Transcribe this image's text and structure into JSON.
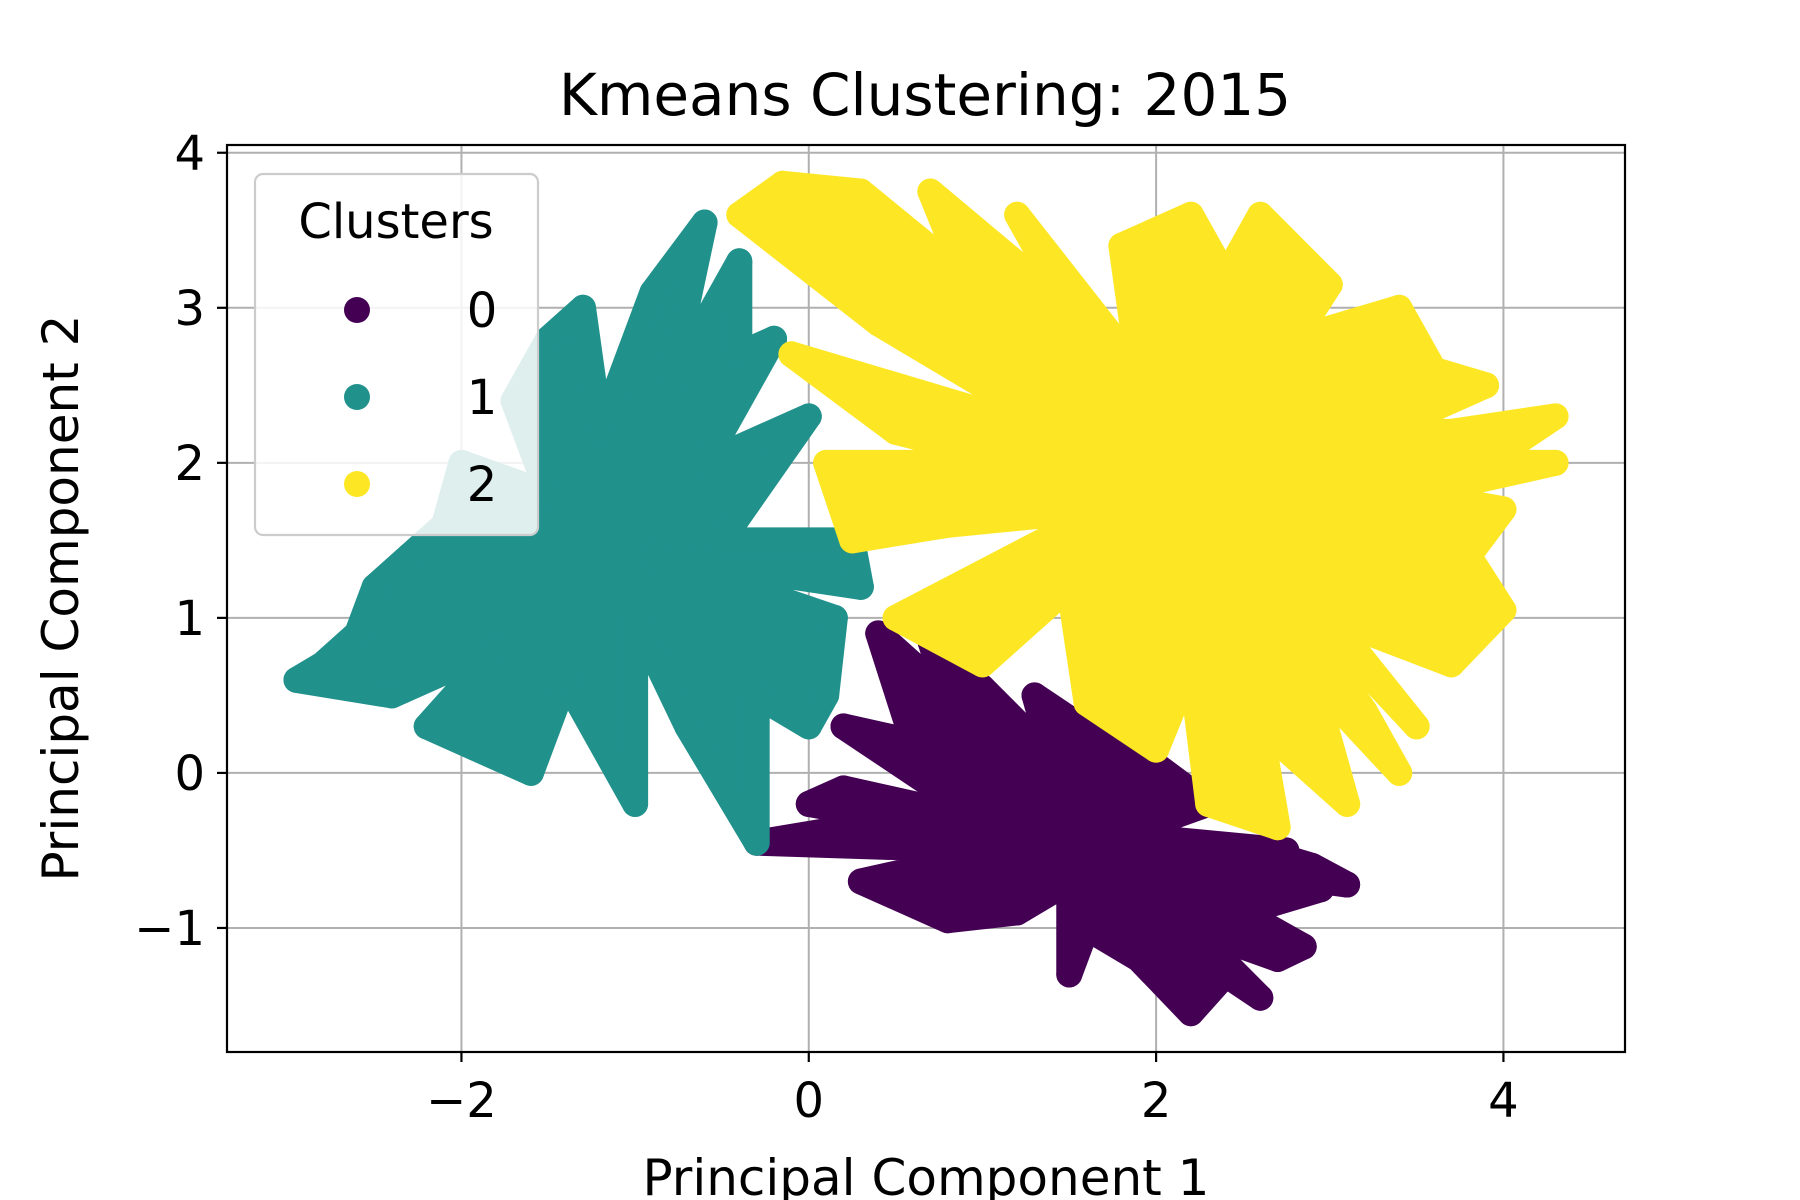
{
  "chart_data": {
    "type": "scatter",
    "title": "Kmeans Clustering: 2015",
    "xlabel": "Principal Component 1",
    "ylabel": "Principal Component 2",
    "xlim": [
      -3.35,
      4.7
    ],
    "ylim": [
      -1.8,
      4.05
    ],
    "x_ticks": [
      -2,
      0,
      2,
      4
    ],
    "y_ticks": [
      -1,
      0,
      1,
      2,
      3,
      4
    ],
    "x_tick_labels": [
      "−2",
      "0",
      "2",
      "4"
    ],
    "y_tick_labels": [
      "−1",
      "0",
      "1",
      "2",
      "3",
      "4"
    ],
    "grid": true,
    "legend": {
      "title": "Clusters",
      "placement": "upper-left"
    },
    "series": [
      {
        "name": "0",
        "color": "#440154",
        "points": [
          [
            -0.3,
            -0.45
          ],
          [
            0.0,
            -0.2
          ],
          [
            0.2,
            0.3
          ],
          [
            0.4,
            0.9
          ],
          [
            0.7,
            0.85
          ],
          [
            1.0,
            0.55
          ],
          [
            1.3,
            0.5
          ],
          [
            1.7,
            0.2
          ],
          [
            2.0,
            0.05
          ],
          [
            2.3,
            -0.2
          ],
          [
            2.6,
            -0.5
          ],
          [
            2.9,
            -0.6
          ],
          [
            3.1,
            -0.72
          ],
          [
            2.85,
            -1.12
          ],
          [
            2.6,
            -1.45
          ],
          [
            2.2,
            -1.55
          ],
          [
            1.5,
            -1.3
          ],
          [
            0.8,
            -0.95
          ],
          [
            0.3,
            -0.7
          ],
          [
            1.0,
            -0.3
          ],
          [
            1.5,
            -0.7
          ],
          [
            2.2,
            -1.0
          ],
          [
            0.6,
            0.2
          ],
          [
            1.4,
            0.1
          ],
          [
            2.5,
            -0.9
          ],
          [
            1.8,
            -0.4
          ],
          [
            0.5,
            -0.3
          ],
          [
            1.2,
            -0.9
          ],
          [
            2.7,
            -1.2
          ],
          [
            2.95,
            -0.75
          ],
          [
            2.3,
            -0.6
          ],
          [
            1.9,
            -1.2
          ],
          [
            0.8,
            0.5
          ],
          [
            1.1,
            -0.5
          ],
          [
            2.75,
            -0.5
          ],
          [
            2.4,
            -1.3
          ],
          [
            0.2,
            -0.1
          ],
          [
            1.6,
            -1.0
          ]
        ]
      },
      {
        "name": "1",
        "color": "#21918c",
        "points": [
          [
            -2.95,
            0.6
          ],
          [
            -2.8,
            0.7
          ],
          [
            -2.3,
            1.4
          ],
          [
            -2.5,
            1.2
          ],
          [
            -2.0,
            2.0
          ],
          [
            -1.5,
            2.8
          ],
          [
            -1.3,
            3.0
          ],
          [
            -0.9,
            3.1
          ],
          [
            -0.6,
            3.55
          ],
          [
            -0.4,
            3.3
          ],
          [
            -0.2,
            2.8
          ],
          [
            0.0,
            2.3
          ],
          [
            0.25,
            1.5
          ],
          [
            0.3,
            1.2
          ],
          [
            0.1,
            0.5
          ],
          [
            0.0,
            0.3
          ],
          [
            -0.3,
            -0.45
          ],
          [
            -1.0,
            -0.2
          ],
          [
            -1.6,
            0.0
          ],
          [
            -2.2,
            0.3
          ],
          [
            -1.0,
            1.0
          ],
          [
            -0.5,
            1.5
          ],
          [
            -1.5,
            1.8
          ],
          [
            -0.8,
            2.5
          ],
          [
            -0.3,
            0.5
          ],
          [
            -1.8,
            0.8
          ],
          [
            -1.2,
            2.2
          ],
          [
            -0.6,
            2.0
          ],
          [
            -2.6,
            0.9
          ],
          [
            -1.4,
            0.6
          ],
          [
            -0.4,
            2.7
          ],
          [
            -2.1,
            1.6
          ],
          [
            -0.7,
            0.3
          ],
          [
            -1.7,
            2.4
          ],
          [
            0.15,
            1.0
          ],
          [
            -0.9,
            1.4
          ],
          [
            -2.4,
            0.5
          ]
        ]
      },
      {
        "name": "2",
        "color": "#fde725",
        "points": [
          [
            -0.4,
            3.6
          ],
          [
            -0.15,
            3.8
          ],
          [
            0.3,
            3.75
          ],
          [
            0.7,
            3.75
          ],
          [
            1.2,
            3.6
          ],
          [
            1.8,
            3.4
          ],
          [
            2.2,
            3.6
          ],
          [
            2.6,
            3.6
          ],
          [
            3.0,
            3.15
          ],
          [
            3.4,
            3.0
          ],
          [
            3.6,
            2.6
          ],
          [
            3.9,
            2.5
          ],
          [
            4.3,
            2.3
          ],
          [
            4.3,
            2.0
          ],
          [
            4.0,
            1.7
          ],
          [
            3.8,
            1.4
          ],
          [
            4.0,
            1.05
          ],
          [
            3.7,
            0.7
          ],
          [
            3.5,
            0.3
          ],
          [
            3.4,
            0.0
          ],
          [
            3.1,
            -0.2
          ],
          [
            2.7,
            -0.35
          ],
          [
            2.3,
            -0.2
          ],
          [
            2.0,
            0.15
          ],
          [
            1.6,
            0.45
          ],
          [
            1.0,
            0.7
          ],
          [
            0.5,
            1.0
          ],
          [
            0.25,
            1.5
          ],
          [
            0.1,
            2.0
          ],
          [
            -0.1,
            2.7
          ],
          [
            0.5,
            2.2
          ],
          [
            1.0,
            2.5
          ],
          [
            1.5,
            3.0
          ],
          [
            2.0,
            2.0
          ],
          [
            2.5,
            1.5
          ],
          [
            3.0,
            1.0
          ],
          [
            3.3,
            2.2
          ],
          [
            1.5,
            1.2
          ],
          [
            2.8,
            2.8
          ],
          [
            0.8,
            1.6
          ],
          [
            2.2,
            0.7
          ],
          [
            3.5,
            1.8
          ],
          [
            1.2,
            2.0
          ],
          [
            2.6,
            0.3
          ],
          [
            0.4,
            2.9
          ],
          [
            1.9,
            2.6
          ],
          [
            3.7,
            2.2
          ],
          [
            3.9,
            2.0
          ],
          [
            2.9,
            0.6
          ],
          [
            1.7,
            1.7
          ],
          [
            3.2,
            0.4
          ],
          [
            0.9,
            3.2
          ],
          [
            2.4,
            3.2
          ]
        ]
      }
    ]
  }
}
